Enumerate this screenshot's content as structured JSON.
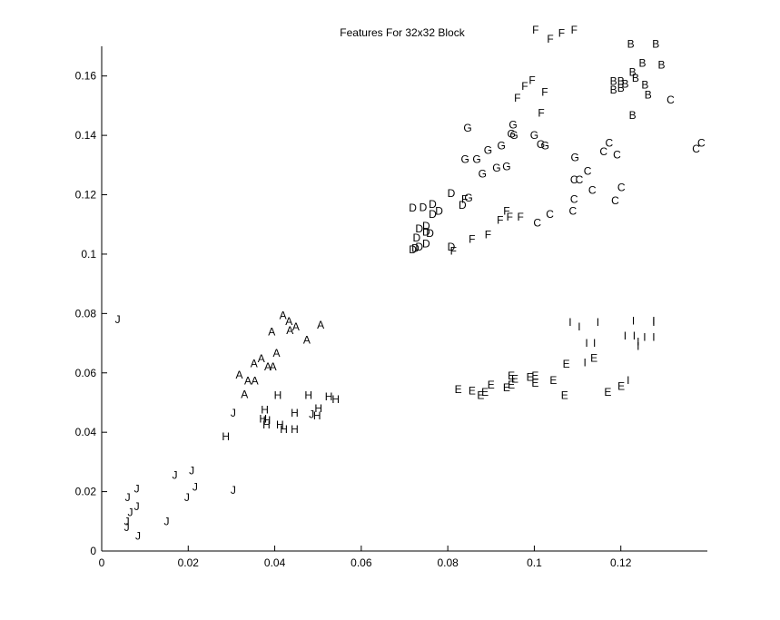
{
  "chart_data": {
    "type": "scatter",
    "title": "Features For 32x32 Block",
    "xlabel": "",
    "ylabel": "",
    "xlim": [
      0,
      0.14
    ],
    "ylim": [
      0,
      0.17
    ],
    "x_ticks": [
      "0",
      "0.02",
      "0.04",
      "0.06",
      "0.08",
      "0.1",
      "0.12"
    ],
    "y_ticks": [
      "0",
      "0.02",
      "0.04",
      "0.06",
      "0.08",
      "0.1",
      "0.12",
      "0.14",
      "0.16"
    ],
    "grid": false,
    "legend": "none",
    "marker": "letter",
    "series": [
      {
        "name": "A",
        "points": [
          [
            0.0419,
            0.0793
          ],
          [
            0.0433,
            0.0773
          ],
          [
            0.0449,
            0.0755
          ],
          [
            0.0506,
            0.0762
          ],
          [
            0.0393,
            0.0738
          ],
          [
            0.0435,
            0.0743
          ],
          [
            0.0474,
            0.0711
          ],
          [
            0.0404,
            0.0666
          ],
          [
            0.0369,
            0.0648
          ],
          [
            0.0352,
            0.0632
          ],
          [
            0.0384,
            0.062
          ],
          [
            0.0396,
            0.062
          ],
          [
            0.0318,
            0.0593
          ],
          [
            0.0338,
            0.0573
          ],
          [
            0.0354,
            0.0573
          ],
          [
            0.033,
            0.0528
          ]
        ]
      },
      {
        "name": "B",
        "points": [
          [
            0.1223,
            0.1708
          ],
          [
            0.1281,
            0.1708
          ],
          [
            0.125,
            0.1643
          ],
          [
            0.1294,
            0.1637
          ],
          [
            0.1227,
            0.1613
          ],
          [
            0.1234,
            0.1593
          ],
          [
            0.1183,
            0.1583
          ],
          [
            0.12,
            0.1583
          ],
          [
            0.121,
            0.1573
          ],
          [
            0.1256,
            0.157
          ],
          [
            0.1183,
            0.1553
          ],
          [
            0.12,
            0.1559
          ],
          [
            0.1263,
            0.1537
          ],
          [
            0.1227,
            0.1467
          ]
        ]
      },
      {
        "name": "C",
        "points": [
          [
            0.1386,
            0.1375
          ],
          [
            0.1374,
            0.1355
          ],
          [
            0.1173,
            0.1375
          ],
          [
            0.116,
            0.1345
          ],
          [
            0.1191,
            0.1335
          ],
          [
            0.1315,
            0.152
          ],
          [
            0.1123,
            0.128
          ],
          [
            0.1092,
            0.125
          ],
          [
            0.1104,
            0.125
          ],
          [
            0.1201,
            0.1225
          ],
          [
            0.1134,
            0.1215
          ],
          [
            0.1092,
            0.1185
          ],
          [
            0.1187,
            0.118
          ],
          [
            0.1089,
            0.1145
          ],
          [
            0.1036,
            0.1135
          ],
          [
            0.1007,
            0.1105
          ]
        ]
      },
      {
        "name": "D",
        "points": [
          [
            0.0719,
            0.1155
          ],
          [
            0.0743,
            0.1158
          ],
          [
            0.0765,
            0.1168
          ],
          [
            0.0808,
            0.1205
          ],
          [
            0.0834,
            0.1165
          ],
          [
            0.078,
            0.1145
          ],
          [
            0.0765,
            0.1135
          ],
          [
            0.0734,
            0.1085
          ],
          [
            0.075,
            0.1095
          ],
          [
            0.075,
            0.1075
          ],
          [
            0.0759,
            0.107
          ],
          [
            0.0728,
            0.1055
          ],
          [
            0.075,
            0.1035
          ],
          [
            0.0734,
            0.1025
          ],
          [
            0.0808,
            0.1025
          ],
          [
            0.0719,
            0.1015
          ],
          [
            0.0725,
            0.102
          ]
        ]
      },
      {
        "name": "E",
        "points": [
          [
            0.1074,
            0.063
          ],
          [
            0.1138,
            0.065
          ],
          [
            0.0947,
            0.059
          ],
          [
            0.0955,
            0.058
          ],
          [
            0.099,
            0.0585
          ],
          [
            0.1002,
            0.059
          ],
          [
            0.1044,
            0.0575
          ],
          [
            0.0947,
            0.056
          ],
          [
            0.1002,
            0.0565
          ],
          [
            0.09,
            0.056
          ],
          [
            0.0936,
            0.055
          ],
          [
            0.0824,
            0.0545
          ],
          [
            0.0856,
            0.054
          ],
          [
            0.0886,
            0.0535
          ],
          [
            0.0876,
            0.0525
          ],
          [
            0.107,
            0.0525
          ],
          [
            0.117,
            0.0535
          ],
          [
            0.1201,
            0.0555
          ]
        ]
      },
      {
        "name": "F",
        "points": [
          [
            0.1092,
            0.1755
          ],
          [
            0.1063,
            0.1745
          ],
          [
            0.1037,
            0.1725
          ],
          [
            0.1003,
            0.1755
          ],
          [
            0.0995,
            0.1585
          ],
          [
            0.0978,
            0.1565
          ],
          [
            0.0961,
            0.1525
          ],
          [
            0.1024,
            0.1545
          ],
          [
            0.1016,
            0.1475
          ],
          [
            0.0839,
            0.1185
          ],
          [
            0.0936,
            0.1145
          ],
          [
            0.0943,
            0.1125
          ],
          [
            0.0968,
            0.1125
          ],
          [
            0.0921,
            0.1115
          ],
          [
            0.0893,
            0.1065
          ],
          [
            0.0856,
            0.105
          ],
          [
            0.0813,
            0.101
          ]
        ]
      },
      {
        "name": "G",
        "points": [
          [
            0.0846,
            0.1425
          ],
          [
            0.0951,
            0.1435
          ],
          [
            0.0947,
            0.1405
          ],
          [
            0.0953,
            0.14
          ],
          [
            0.1,
            0.14
          ],
          [
            0.1015,
            0.137
          ],
          [
            0.1025,
            0.1365
          ],
          [
            0.0924,
            0.1365
          ],
          [
            0.0893,
            0.135
          ],
          [
            0.0867,
            0.132
          ],
          [
            0.084,
            0.132
          ],
          [
            0.1094,
            0.1325
          ],
          [
            0.0913,
            0.129
          ],
          [
            0.0936,
            0.1295
          ],
          [
            0.088,
            0.127
          ],
          [
            0.0848,
            0.119
          ]
        ]
      },
      {
        "name": "H",
        "points": [
          [
            0.0407,
            0.0525
          ],
          [
            0.0478,
            0.0525
          ],
          [
            0.0525,
            0.052
          ],
          [
            0.0541,
            0.051
          ],
          [
            0.0377,
            0.0475
          ],
          [
            0.0446,
            0.0465
          ],
          [
            0.0501,
            0.048
          ],
          [
            0.0498,
            0.0455
          ],
          [
            0.0373,
            0.0445
          ],
          [
            0.0382,
            0.044
          ],
          [
            0.0381,
            0.0425
          ],
          [
            0.0412,
            0.0425
          ],
          [
            0.0421,
            0.041
          ],
          [
            0.0446,
            0.041
          ],
          [
            0.0287,
            0.0385
          ]
        ]
      },
      {
        "name": "I",
        "points": [
          [
            0.1083,
            0.077
          ],
          [
            0.1104,
            0.0755
          ],
          [
            0.1147,
            0.077
          ],
          [
            0.1229,
            0.0775
          ],
          [
            0.1276,
            0.0775
          ],
          [
            0.1276,
            0.077
          ],
          [
            0.121,
            0.0725
          ],
          [
            0.1231,
            0.0725
          ],
          [
            0.1255,
            0.072
          ],
          [
            0.1276,
            0.072
          ],
          [
            0.1121,
            0.07
          ],
          [
            0.1139,
            0.07
          ],
          [
            0.124,
            0.0705
          ],
          [
            0.124,
            0.069
          ],
          [
            0.1117,
            0.0635
          ],
          [
            0.1217,
            0.0575
          ]
        ]
      },
      {
        "name": "J",
        "points": [
          [
            0.0037,
            0.078
          ],
          [
            0.0485,
            0.046
          ],
          [
            0.0304,
            0.0465
          ],
          [
            0.0208,
            0.027
          ],
          [
            0.0169,
            0.0255
          ],
          [
            0.0081,
            0.021
          ],
          [
            0.0216,
            0.0215
          ],
          [
            0.0304,
            0.0205
          ],
          [
            0.006,
            0.018
          ],
          [
            0.0197,
            0.018
          ],
          [
            0.0081,
            0.015
          ],
          [
            0.0066,
            0.013
          ],
          [
            0.0058,
            0.01
          ],
          [
            0.015,
            0.01
          ],
          [
            0.0058,
            0.008
          ],
          [
            0.0084,
            0.005
          ]
        ]
      }
    ]
  }
}
